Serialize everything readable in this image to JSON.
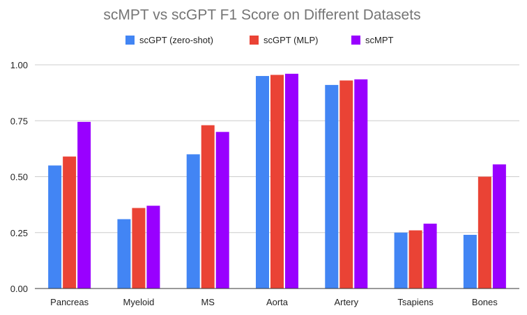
{
  "chart_data": {
    "type": "bar",
    "title": "scMPT vs scGPT F1 Score on Different Datasets",
    "xlabel": "",
    "ylabel": "",
    "categories": [
      "Pancreas",
      "Myeloid",
      "MS",
      "Aorta",
      "Artery",
      "Tsapiens",
      "Bones"
    ],
    "series": [
      {
        "name": "scGPT (zero-shot)",
        "color": "#4285f4",
        "values": [
          0.55,
          0.31,
          0.6,
          0.95,
          0.91,
          0.25,
          0.24
        ]
      },
      {
        "name": "scGPT (MLP)",
        "color": "#ea4335",
        "values": [
          0.59,
          0.36,
          0.73,
          0.955,
          0.93,
          0.26,
          0.5
        ]
      },
      {
        "name": "scMPT",
        "color": "#9900ff",
        "values": [
          0.745,
          0.37,
          0.7,
          0.96,
          0.935,
          0.29,
          0.555
        ]
      }
    ],
    "ylim": [
      0,
      1
    ],
    "yticks": [
      "0.00",
      "0.25",
      "0.50",
      "0.75",
      "1.00"
    ],
    "grid": true,
    "legend_position": "top-center"
  }
}
